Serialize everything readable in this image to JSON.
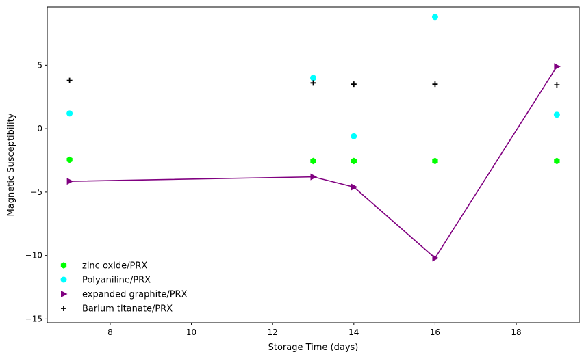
{
  "chart_data": {
    "type": "scatter",
    "title": "",
    "xlabel": "Storage Time (days)",
    "ylabel": "Magnetic Susceptibility",
    "xlim": [
      6.45,
      19.55
    ],
    "ylim": [
      -15.3,
      9.6
    ],
    "x_ticks": [
      8,
      10,
      12,
      14,
      16,
      18
    ],
    "x_tick_labels": [
      "8",
      "10",
      "12",
      "14",
      "16",
      "18"
    ],
    "y_ticks": [
      -15,
      -10,
      -5,
      0,
      5
    ],
    "y_tick_labels": [
      "−15",
      "−10",
      "−5",
      "0",
      "5"
    ],
    "grid": false,
    "legend_position": "lower-left",
    "x": [
      7,
      13,
      14,
      16,
      19
    ],
    "series": [
      {
        "name": "zinc oxide/PRX",
        "values": [
          -2.45,
          -2.55,
          -2.55,
          -2.55,
          -2.55
        ],
        "color": "#00ff00",
        "marker": "hexagon",
        "connected": false
      },
      {
        "name": "Polyaniline/PRX",
        "values": [
          1.2,
          4.0,
          -0.6,
          8.8,
          1.1
        ],
        "color": "#00ffff",
        "marker": "circle",
        "connected": false
      },
      {
        "name": "expanded graphite/PRX",
        "values": [
          -4.15,
          -3.8,
          -4.6,
          -10.2,
          4.9
        ],
        "color": "#800080",
        "marker": "triangle-right",
        "connected": true
      },
      {
        "name": "Barium titanate/PRX",
        "values": [
          3.8,
          3.6,
          3.5,
          3.5,
          3.45
        ],
        "color": "#000000",
        "marker": "plus",
        "connected": false
      }
    ]
  }
}
